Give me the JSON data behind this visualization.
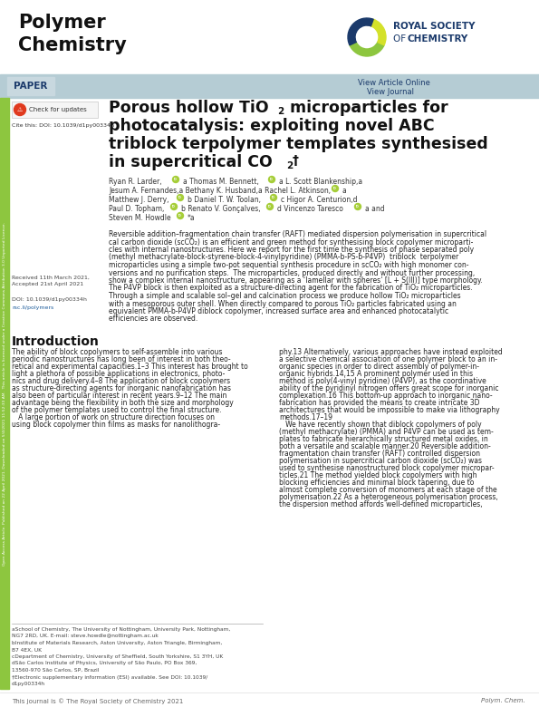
{
  "bg_color": "#ffffff",
  "header_bar_color": "#b5ccd4",
  "paper_tag_color": "#c8d8df",
  "rsc_blue": "#1b3a6b",
  "green_bar_color": "#8dc63f",
  "orcid_green": "#a6ce39",
  "journal_title": "Polymer\nChemistry",
  "rsc_logo_green": "#8dc63f",
  "rsc_logo_yellow": "#d4e12a",
  "rsc_logo_blue": "#1b3a6b",
  "title_line1": "Porous hollow TiO",
  "title_line1_sub": "2",
  "title_line1_rest": " microparticles for",
  "title_line2": "photocatalysis: exploiting novel ABC",
  "title_line3": "triblock terpolymer templates synthesised",
  "title_line4": "in supercritical CO",
  "title_line4_sub": "2",
  "title_dagger": "†",
  "cite_text": "Cite this: DOI: 10.1039/d1py00334h",
  "received_text": "Received 11th March 2021,\nAccepted 21st April 2021",
  "doi_text": "DOI: 10.1039/d1py00334h",
  "rsc_url": "rsc.li/polymers",
  "abstract": "Reversible addition–fragmentation chain transfer (RAFT) mediated dispersion polymerisation in supercritical carbon dioxide (scCO₂) is an efficient and green method for synthesising block copolymer microparticles with internal nanostructures. Here we report for the first time the synthesis of phase separated poly (methyl methacrylate-block-styrene-block-4-vinylpyridine) (PMMA-b-PS-b-P4VP)  triblock  terpolymer microparticles using a simple two-pot sequential synthesis procedure in scCO₂ with high monomer conversions and no purification steps.  The microparticles, produced directly and without further processing, show a complex internal nanostructure, appearing as a ‘lamellar with spheres’ [L + S(III)] type morphology. The P4VP block is then exploited as a structure-directing agent for the fabrication of TiO₂ microparticles. Through a simple and scalable sol–gel and calcination process we produce hollow TiO₂ microparticles with a mesoporous outer shell. When directly compared to porous TiO₂ particles fabricated using an equivalent PMMA-b-P4VP diblock copolymer, increased surface area and enhanced photocatalytic efficiencies are observed.",
  "intro_heading": "Introduction",
  "intro_col1": "The ability of block copolymers to self-assemble into various\nperiodic nanostructures has long been of interest in both theo-\nretical and experimental capacities.1–3 This interest has brought to\nlight a plethora of possible applications in electronics, photo-\nnics and drug delivery.4–8 The application of block copolymers\nas structure-directing agents for inorganic nanofabrication has\nalso been of particular interest in recent years.9–12 The main\nadvantage being the flexibility in both the size and morphology\nof the polymer templates used to control the final structure.\n   A large portion of work on structure direction focuses on\nusing block copolymer thin films as masks for nanolithogra-",
  "intro_col2": "phy.13 Alternatively, various approaches have instead exploited\na selective chemical association of one polymer block to an in-\norganic species in order to direct assembly of polymer-in-\norganic hybrids.14,15 A prominent polymer used in this\nmethod is poly(4-vinyl pyridine) (P4VP), as the coordinative\nability of the pyridinyl nitrogen offers great scope for inorganic\ncomplexation.16 This bottom-up approach to inorganic nano-\nfabrication has provided the means to create intricate 3D\narchitectures that would be impossible to make via lithography\nmethods.17–19\n   We have recently shown that diblock copolymers of poly\n(methyl methacrylate) (PMMA) and P4VP can be used as tem-\nplates to fabricate hierarchically structured metal oxides, in\nboth a versatile and scalable manner.20 Reversible addition-\nfragmentation chain transfer (RAFT) controlled dispersion\npolymerisation in supercritical carbon dioxide (scCO₂) was\nused to synthesise nanostructured block copolymer micropar-\nticles.21 The method yielded block copolymers with high\nblocking efficiencies and minimal block tapering, due to\nalmost complete conversion of monomers at each stage of the\npolymerisation.22 As a heterogeneous polymerisation process,\nthe dispersion method affords well-defined microparticles,",
  "footnotes": "aSchool of Chemistry, The University of Nottingham, University Park, Nottingham,\nNG7 2RD, UK. E-mail: steve.howdle@nottingham.ac.uk\nbInstitute of Materials Research, Aston University, Aston Triangle, Birmingham,\nB7 4EX, UK\ncDepartment of Chemistry, University of Sheffield, South Yorkshire, S1 3YH, UK\ndSão Carlos Institute of Physics, University of São Paulo, PO Box 369,\n13560-970 São Carlos, SP, Brazil\n†Electronic supplementary information (ESI) available. See DOI: 10.1039/\nd1py00334h",
  "bottom_left": "This journal is © The Royal Society of Chemistry 2021",
  "bottom_right": "Polym. Chem.",
  "sidebar_text": "Open Access Article. Published on 22 April 2021. Downloaded on 5/4/2021 11:52:33 AM.  This article is licensed under a Creative Commons Attribution 3.0 Unported Licence."
}
